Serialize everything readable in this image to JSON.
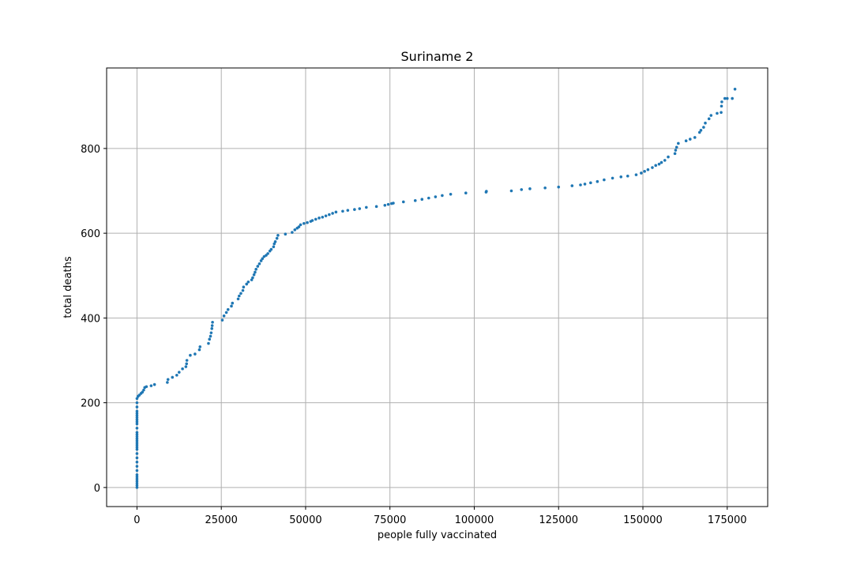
{
  "chart_data": {
    "type": "scatter",
    "title": "Suriname 2",
    "xlabel": "people fully vaccinated",
    "ylabel": "total deaths",
    "xlim": [
      -9000,
      187000
    ],
    "ylim": [
      -45,
      990
    ],
    "xticks": [
      0,
      25000,
      50000,
      75000,
      100000,
      125000,
      150000,
      175000
    ],
    "yticks": [
      0,
      200,
      400,
      600,
      800
    ],
    "grid": true,
    "marker_color": "#1f77b4",
    "series": [
      {
        "points": [
          [
            0,
            0
          ],
          [
            0,
            5
          ],
          [
            0,
            10
          ],
          [
            0,
            15
          ],
          [
            0,
            20
          ],
          [
            0,
            25
          ],
          [
            0,
            30
          ],
          [
            0,
            40
          ],
          [
            0,
            50
          ],
          [
            0,
            60
          ],
          [
            0,
            70
          ],
          [
            0,
            80
          ],
          [
            0,
            90
          ],
          [
            0,
            95
          ],
          [
            0,
            100
          ],
          [
            0,
            105
          ],
          [
            0,
            110
          ],
          [
            0,
            115
          ],
          [
            0,
            120
          ],
          [
            0,
            125
          ],
          [
            0,
            130
          ],
          [
            0,
            140
          ],
          [
            0,
            150
          ],
          [
            0,
            155
          ],
          [
            0,
            160
          ],
          [
            0,
            165
          ],
          [
            0,
            170
          ],
          [
            0,
            175
          ],
          [
            0,
            180
          ],
          [
            0,
            190
          ],
          [
            0,
            200
          ],
          [
            0,
            210
          ],
          [
            300,
            215
          ],
          [
            700,
            218
          ],
          [
            1200,
            222
          ],
          [
            1600,
            225
          ],
          [
            2000,
            230
          ],
          [
            2300,
            236
          ],
          [
            2800,
            238
          ],
          [
            4200,
            240
          ],
          [
            5200,
            243
          ],
          [
            9000,
            248
          ],
          [
            9200,
            255
          ],
          [
            10500,
            260
          ],
          [
            11800,
            265
          ],
          [
            12500,
            272
          ],
          [
            13500,
            280
          ],
          [
            14500,
            285
          ],
          [
            14700,
            292
          ],
          [
            14800,
            300
          ],
          [
            15800,
            312
          ],
          [
            17200,
            315
          ],
          [
            18500,
            325
          ],
          [
            18700,
            332
          ],
          [
            21200,
            340
          ],
          [
            21500,
            350
          ],
          [
            21800,
            357
          ],
          [
            22000,
            365
          ],
          [
            22200,
            375
          ],
          [
            22300,
            382
          ],
          [
            22400,
            390
          ],
          [
            25300,
            395
          ],
          [
            25800,
            405
          ],
          [
            26500,
            413
          ],
          [
            27000,
            420
          ],
          [
            28000,
            428
          ],
          [
            28300,
            435
          ],
          [
            30000,
            445
          ],
          [
            30300,
            452
          ],
          [
            30800,
            458
          ],
          [
            31400,
            465
          ],
          [
            31600,
            473
          ],
          [
            32500,
            480
          ],
          [
            33000,
            485
          ],
          [
            34000,
            490
          ],
          [
            34300,
            495
          ],
          [
            34700,
            502
          ],
          [
            35000,
            508
          ],
          [
            35300,
            515
          ],
          [
            35800,
            522
          ],
          [
            36300,
            528
          ],
          [
            36800,
            535
          ],
          [
            37200,
            540
          ],
          [
            37700,
            545
          ],
          [
            38300,
            548
          ],
          [
            38800,
            552
          ],
          [
            39400,
            558
          ],
          [
            39800,
            562
          ],
          [
            40500,
            568
          ],
          [
            40700,
            575
          ],
          [
            41000,
            580
          ],
          [
            41500,
            588
          ],
          [
            41800,
            595
          ],
          [
            44000,
            598
          ],
          [
            46000,
            602
          ],
          [
            46800,
            608
          ],
          [
            47500,
            612
          ],
          [
            48000,
            615
          ],
          [
            48500,
            620
          ],
          [
            49500,
            623
          ],
          [
            50500,
            625
          ],
          [
            51500,
            628
          ],
          [
            52000,
            630
          ],
          [
            53000,
            633
          ],
          [
            54000,
            636
          ],
          [
            55000,
            638
          ],
          [
            56000,
            641
          ],
          [
            57000,
            644
          ],
          [
            58000,
            647
          ],
          [
            59000,
            650
          ],
          [
            61000,
            652
          ],
          [
            62500,
            654
          ],
          [
            64500,
            656
          ],
          [
            66000,
            658
          ],
          [
            68000,
            661
          ],
          [
            71000,
            663
          ],
          [
            73500,
            666
          ],
          [
            74500,
            668
          ],
          [
            75500,
            670
          ],
          [
            76000,
            671
          ],
          [
            79000,
            674
          ],
          [
            82500,
            677
          ],
          [
            84500,
            680
          ],
          [
            86500,
            683
          ],
          [
            88500,
            686
          ],
          [
            90500,
            689
          ],
          [
            93000,
            692
          ],
          [
            97500,
            695
          ],
          [
            103500,
            697
          ],
          [
            103600,
            699
          ],
          [
            111000,
            700
          ],
          [
            114000,
            703
          ],
          [
            116500,
            705
          ],
          [
            121000,
            707
          ],
          [
            125000,
            709
          ],
          [
            129000,
            712
          ],
          [
            131500,
            714
          ],
          [
            132800,
            716
          ],
          [
            134500,
            719
          ],
          [
            136500,
            722
          ],
          [
            138500,
            726
          ],
          [
            141000,
            730
          ],
          [
            143500,
            733
          ],
          [
            145500,
            735
          ],
          [
            148000,
            738
          ],
          [
            149500,
            742
          ],
          [
            150500,
            746
          ],
          [
            151500,
            750
          ],
          [
            152800,
            755
          ],
          [
            153800,
            760
          ],
          [
            154800,
            763
          ],
          [
            155500,
            767
          ],
          [
            156500,
            772
          ],
          [
            157500,
            780
          ],
          [
            159500,
            788
          ],
          [
            159700,
            796
          ],
          [
            160000,
            803
          ],
          [
            160500,
            812
          ],
          [
            162800,
            818
          ],
          [
            164000,
            822
          ],
          [
            165400,
            826
          ],
          [
            166800,
            838
          ],
          [
            167200,
            843
          ],
          [
            168000,
            850
          ],
          [
            168500,
            860
          ],
          [
            169600,
            870
          ],
          [
            170200,
            878
          ],
          [
            172000,
            883
          ],
          [
            173200,
            885
          ],
          [
            173300,
            900
          ],
          [
            173400,
            910
          ],
          [
            174300,
            918
          ],
          [
            175000,
            918
          ],
          [
            176500,
            918
          ],
          [
            177300,
            940
          ]
        ]
      }
    ]
  }
}
